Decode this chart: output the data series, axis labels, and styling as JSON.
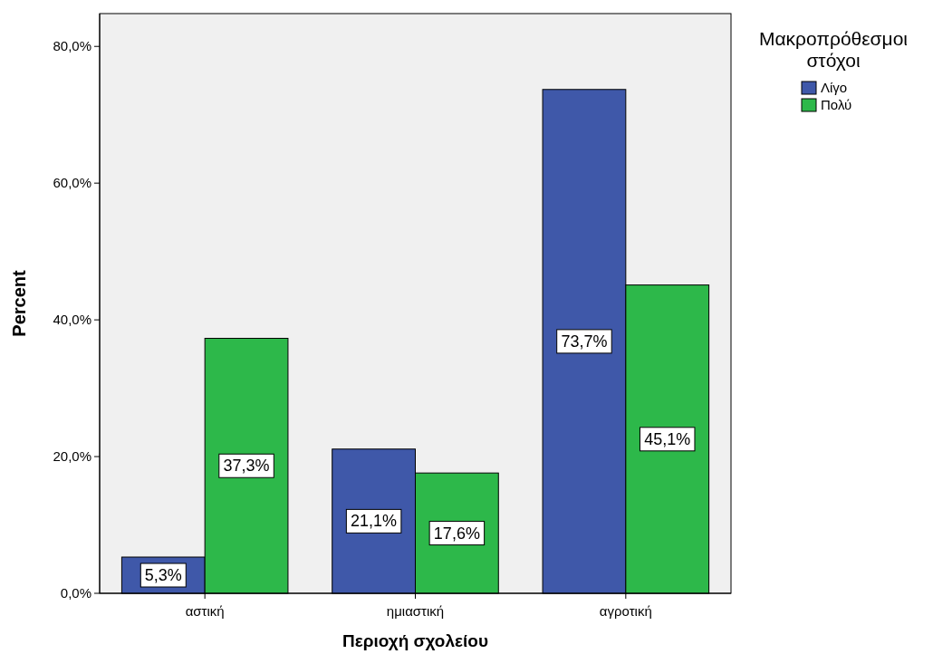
{
  "chart_data": {
    "type": "bar",
    "xlabel": "Περιοχή σχολείου",
    "ylabel": "Percent",
    "legend_title": "Μακροπρόθεσμοι στόχοι",
    "legend": "top right",
    "categories": [
      "αστική",
      "ημιαστική",
      "αγροτική"
    ],
    "series": [
      {
        "name": "Λίγο",
        "color": "#3f58a9",
        "values": [
          5.3,
          21.1,
          73.7
        ],
        "value_labels": [
          "5,3%",
          "21,1%",
          "73,7%"
        ]
      },
      {
        "name": "Πολύ",
        "color": "#2db84a",
        "values": [
          37.3,
          17.6,
          45.1
        ],
        "value_labels": [
          "37,3%",
          "17,6%",
          "45,1%"
        ]
      }
    ],
    "ylim": [
      0,
      84.8
    ],
    "yticks": [
      {
        "value": 0,
        "label": "0,0%"
      },
      {
        "value": 20,
        "label": "20,0%"
      },
      {
        "value": 40,
        "label": "40,0%"
      },
      {
        "value": 60,
        "label": "60,0%"
      },
      {
        "value": 80,
        "label": "80,0%"
      }
    ]
  }
}
